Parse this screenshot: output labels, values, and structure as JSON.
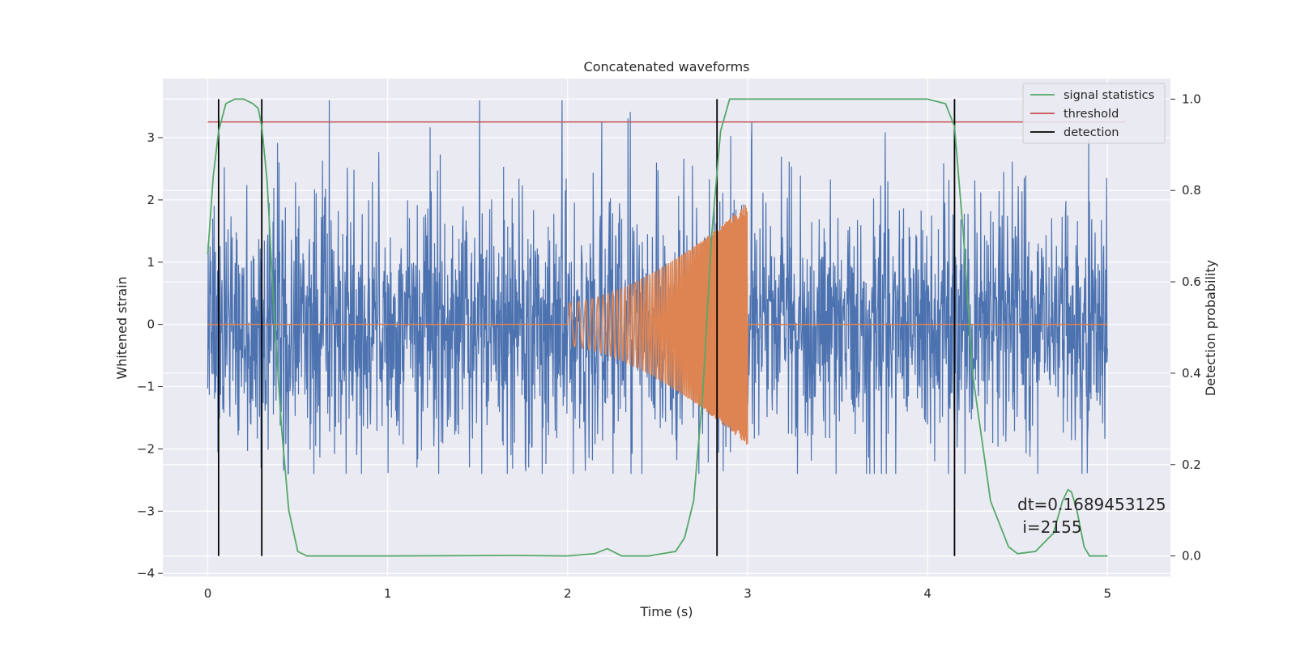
{
  "chart_data": {
    "type": "line",
    "title": "Concatenated waveforms",
    "xlabel": "Time (s)",
    "ylabel": "Whitened strain",
    "y2label": "Detection probability",
    "xlim": [
      -0.25,
      5.35
    ],
    "ylim": [
      -4.05,
      3.95
    ],
    "y2lim": [
      -0.045,
      1.045
    ],
    "xticks": [
      0,
      1,
      2,
      3,
      4,
      5
    ],
    "yticks": [
      -4,
      -3,
      -2,
      -1,
      0,
      1,
      2,
      3
    ],
    "y2ticks": [
      0.0,
      0.2,
      0.4,
      0.6,
      0.8,
      1.0
    ],
    "xtick_labels": [
      "0",
      "1",
      "2",
      "3",
      "4",
      "5"
    ],
    "ytick_labels": [
      "−4",
      "−3",
      "−2",
      "−1",
      "0",
      "1",
      "2",
      "3"
    ],
    "y2tick_labels": [
      "0.0",
      "0.2",
      "0.4",
      "0.6",
      "0.8",
      "1.0"
    ],
    "grid": true,
    "legend_position": "top-right",
    "colors": {
      "noise": "#4c72b0",
      "injection": "#dd8452",
      "signal_statistics": "#55a868",
      "threshold": "#c44e52",
      "detection": "#000000",
      "plot_background": "#eaeaf2",
      "grid": "#ffffff"
    },
    "series": [
      {
        "name": "",
        "role": "noise",
        "axis": "left",
        "description": "whitened noisy strain, amplitude roughly within -2.4 to 3.6 over 0–5 s",
        "x_range": [
          0,
          5
        ],
        "envelope": [
          -2.4,
          3.6
        ]
      },
      {
        "name": "",
        "role": "injection",
        "axis": "left",
        "description": "chirp injection from 2 s to 3 s, amplitude grows to about 1.9",
        "x_range": [
          2.0,
          3.0
        ],
        "amplitude": [
          0.35,
          1.95
        ]
      },
      {
        "name": "signal statistics",
        "role": "signal_statistics",
        "axis": "right",
        "x": [
          0.0,
          0.03,
          0.06,
          0.1,
          0.15,
          0.2,
          0.25,
          0.28,
          0.3,
          0.33,
          0.37,
          0.41,
          0.45,
          0.5,
          0.55,
          1.0,
          1.7,
          2.0,
          2.15,
          2.22,
          2.3,
          2.45,
          2.6,
          2.65,
          2.7,
          2.75,
          2.8,
          2.85,
          2.9,
          3.0,
          3.5,
          4.0,
          4.1,
          4.15,
          4.2,
          4.25,
          4.35,
          4.45,
          4.5,
          4.6,
          4.7,
          4.75,
          4.78,
          4.8,
          4.83,
          4.87,
          4.9,
          5.0
        ],
        "y": [
          0.66,
          0.83,
          0.93,
          0.99,
          1.0,
          1.0,
          0.99,
          0.98,
          0.94,
          0.82,
          0.52,
          0.28,
          0.1,
          0.01,
          0.0,
          0.0,
          0.001,
          0.0,
          0.005,
          0.016,
          0.0,
          0.0,
          0.01,
          0.04,
          0.12,
          0.35,
          0.7,
          0.93,
          1.0,
          1.0,
          1.0,
          1.0,
          0.99,
          0.94,
          0.7,
          0.4,
          0.12,
          0.02,
          0.005,
          0.01,
          0.05,
          0.12,
          0.145,
          0.14,
          0.1,
          0.02,
          0.0,
          0.0
        ]
      },
      {
        "name": "threshold",
        "role": "threshold",
        "axis": "right",
        "x": [
          0,
          5.1
        ],
        "y": [
          0.95,
          0.95
        ]
      },
      {
        "name": "detection",
        "role": "detection",
        "axis": "right",
        "x": [
          0.06,
          0.3,
          2.83,
          4.15
        ],
        "y_range": [
          0.0,
          1.0
        ]
      }
    ],
    "legend": [
      "signal statistics",
      "threshold",
      "detection"
    ],
    "annotation": {
      "line1": "dt=0.1689453125",
      "line2": " i=2155"
    }
  }
}
